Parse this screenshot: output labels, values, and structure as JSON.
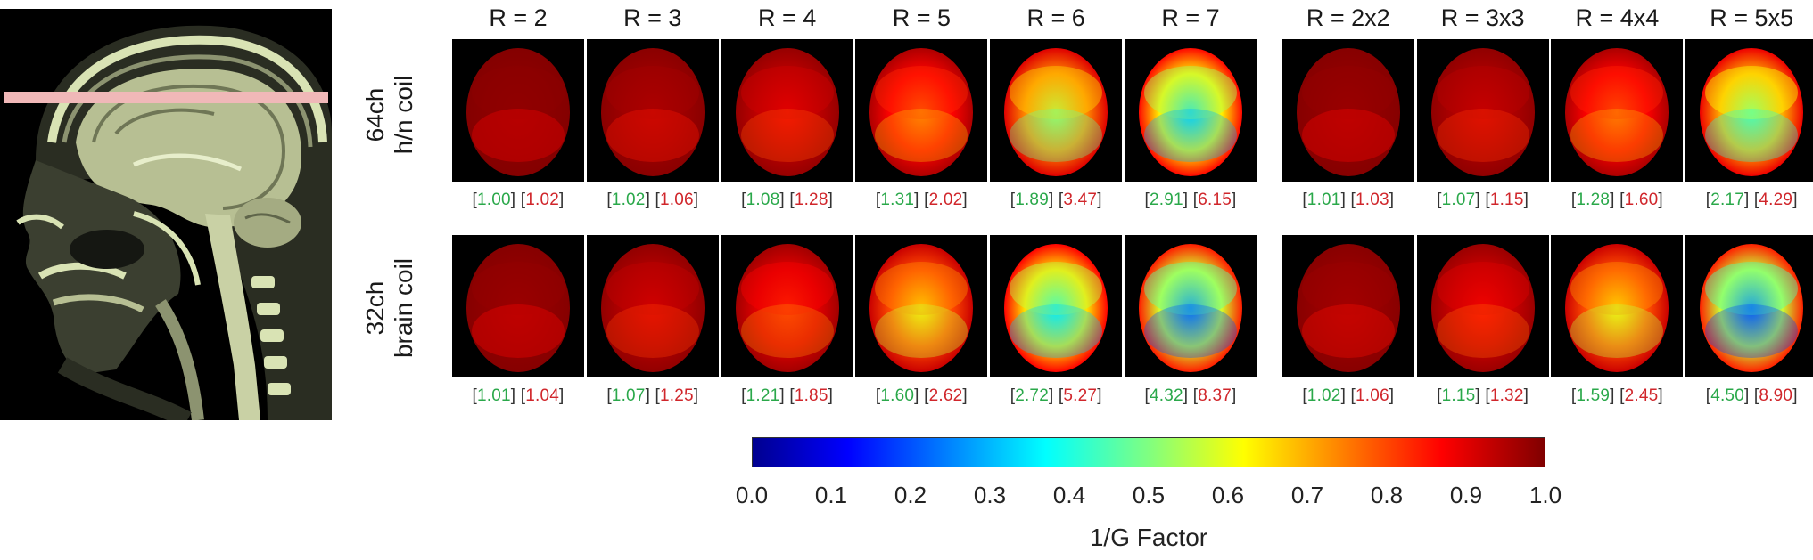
{
  "columns": [
    "R = 2",
    "R = 3",
    "R = 4",
    "R = 5",
    "R = 6",
    "R = 7",
    "R = 2x2",
    "R = 3x3",
    "R = 4x4",
    "R = 5x5"
  ],
  "rows": [
    {
      "label_line1": "64ch",
      "label_line2": "h/n coil",
      "cells": [
        {
          "mean": "1.00",
          "max": "1.02",
          "level": 0.98
        },
        {
          "mean": "1.02",
          "max": "1.06",
          "level": 0.95
        },
        {
          "mean": "1.08",
          "max": "1.28",
          "level": 0.89
        },
        {
          "mean": "1.31",
          "max": "2.02",
          "level": 0.77
        },
        {
          "mean": "1.89",
          "max": "3.47",
          "level": 0.53
        },
        {
          "mean": "2.91",
          "max": "6.15",
          "level": 0.34
        },
        {
          "mean": "1.01",
          "max": "1.03",
          "level": 0.97
        },
        {
          "mean": "1.07",
          "max": "1.15",
          "level": 0.92
        },
        {
          "mean": "1.28",
          "max": "1.60",
          "level": 0.78
        },
        {
          "mean": "2.17",
          "max": "4.29",
          "level": 0.46
        }
      ]
    },
    {
      "label_line1": "32ch",
      "label_line2": "brain coil",
      "cells": [
        {
          "mean": "1.01",
          "max": "1.04",
          "level": 0.97
        },
        {
          "mean": "1.07",
          "max": "1.25",
          "level": 0.91
        },
        {
          "mean": "1.21",
          "max": "1.85",
          "level": 0.83
        },
        {
          "mean": "1.60",
          "max": "2.62",
          "level": 0.64
        },
        {
          "mean": "2.72",
          "max": "5.27",
          "level": 0.37
        },
        {
          "mean": "4.32",
          "max": "8.37",
          "level": 0.24
        },
        {
          "mean": "1.02",
          "max": "1.06",
          "level": 0.96
        },
        {
          "mean": "1.15",
          "max": "1.32",
          "level": 0.87
        },
        {
          "mean": "1.59",
          "max": "2.45",
          "level": 0.63
        },
        {
          "mean": "4.50",
          "max": "8.90",
          "level": 0.22
        }
      ]
    }
  ],
  "colorbar": {
    "label": "1/G Factor",
    "ticks": [
      "0.0",
      "0.1",
      "0.2",
      "0.3",
      "0.4",
      "0.5",
      "0.6",
      "0.7",
      "0.8",
      "0.9",
      "1.0"
    ],
    "range": [
      0.0,
      1.0
    ],
    "colormap": "jet"
  },
  "colors": {
    "mean_value": "#2aa84a",
    "max_value": "#d0262b",
    "slice_line": "#f0b8b8",
    "mri_tint": "#d9e3b4"
  }
}
